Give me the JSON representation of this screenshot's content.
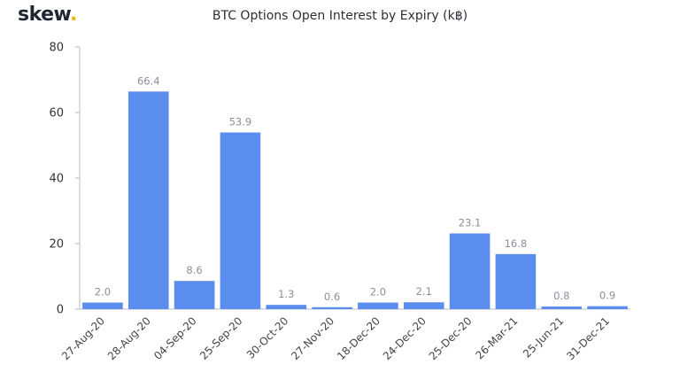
{
  "brand": {
    "name": "skew",
    "dot": "."
  },
  "chart_data": {
    "type": "bar",
    "title": "BTC Options Open Interest by Expiry (k฿)",
    "categories": [
      "27-Aug-20",
      "28-Aug-20",
      "04-Sep-20",
      "25-Sep-20",
      "30-Oct-20",
      "27-Nov-20",
      "18-Dec-20",
      "24-Dec-20",
      "25-Dec-20",
      "26-Mar-21",
      "25-Jun-21",
      "31-Dec-21"
    ],
    "values": [
      2.0,
      66.4,
      8.6,
      53.9,
      1.3,
      0.6,
      2.0,
      2.1,
      23.1,
      16.8,
      0.8,
      0.9
    ],
    "data_labels": [
      "2.0",
      "66.4",
      "8.6",
      "53.9",
      "1.3",
      "0.6",
      "2.0",
      "2.1",
      "23.1",
      "16.8",
      "0.8",
      "0.9"
    ],
    "ylim": [
      0,
      80
    ],
    "yticks": [
      0,
      20,
      40,
      60,
      80
    ],
    "xlabel": "",
    "ylabel": "",
    "grid": false,
    "bar_color": "#5b8def"
  }
}
